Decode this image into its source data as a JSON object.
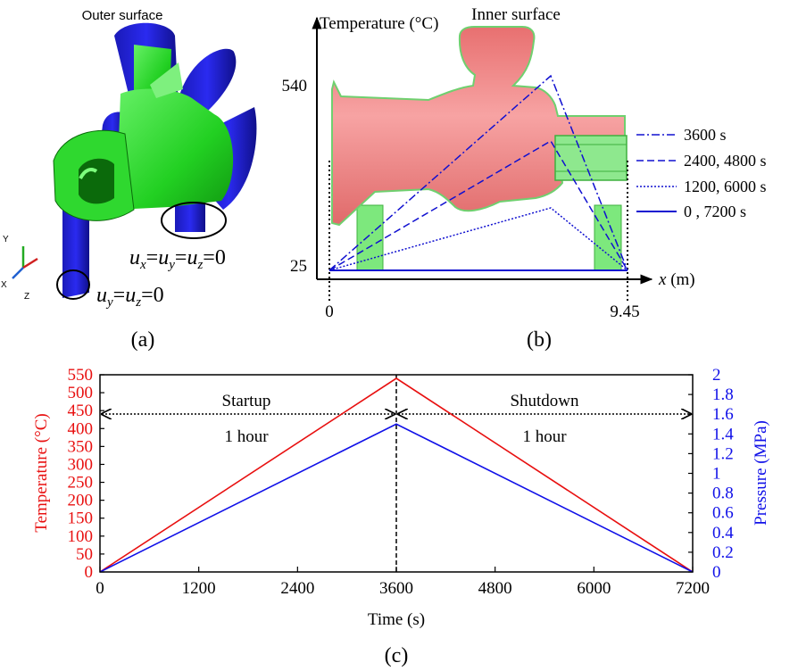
{
  "panel_a": {
    "title": "Outer surface",
    "label": "(a)",
    "bc1": {
      "u": "u",
      "s1": "x",
      "e1": "=",
      "s2": "y",
      "e2": "=",
      "s3": "z",
      "tail": "=0"
    },
    "bc2": {
      "u": "u",
      "s1": "y",
      "e1": "=",
      "s2": "z",
      "tail": "=0"
    },
    "triad": {
      "y": "Y",
      "x": "X",
      "z": "Z"
    },
    "colors": {
      "pipe": "#1a1ae0",
      "nozzle": "#22dd22"
    }
  },
  "panel_b": {
    "title": "Inner surface",
    "label": "(b)",
    "ylabel": "Temperature (°C)",
    "xlabel_var": "x",
    "xlabel_unit": " (m)",
    "yticks": [
      "540",
      "25"
    ],
    "xticks": [
      "0",
      "9.45"
    ],
    "legend": [
      "3600 s",
      "2400, 4800 s",
      "1200, 6000 s",
      "0 , 7200 s"
    ],
    "line_color": "#1010d0",
    "body_color": "#ee8080"
  },
  "chart_data": {
    "type": "line",
    "label": "(c)",
    "xlabel": "Time (s)",
    "ylabel_left": "Temperature (°C)",
    "ylabel_right": "Pressure (MPa)",
    "x_ticks": [
      "0",
      "1200",
      "2400",
      "3600",
      "4800",
      "6000",
      "7200"
    ],
    "y_left_ticks": [
      "0",
      "50",
      "100",
      "150",
      "200",
      "250",
      "300",
      "350",
      "400",
      "450",
      "500",
      "550"
    ],
    "y_right_ticks": [
      "0",
      "0.2",
      "0.4",
      "0.6",
      "0.8",
      "1",
      "1.2",
      "1.4",
      "1.6",
      "1.8",
      "2"
    ],
    "xlim": [
      0,
      7200
    ],
    "ylim_left": [
      0,
      550
    ],
    "ylim_right": [
      0,
      2
    ],
    "series": [
      {
        "axis": "left",
        "color": "#e81010",
        "x": [
          0,
          3600,
          7200
        ],
        "y": [
          0,
          540,
          0
        ]
      },
      {
        "axis": "right",
        "color": "#1010e8",
        "x": [
          0,
          3600,
          7200
        ],
        "y": [
          0,
          1.5,
          0
        ]
      }
    ],
    "annotations": {
      "startup": "Startup",
      "shutdown": "Shutdown",
      "dur1": "1 hour",
      "dur2": "1 hour"
    }
  }
}
